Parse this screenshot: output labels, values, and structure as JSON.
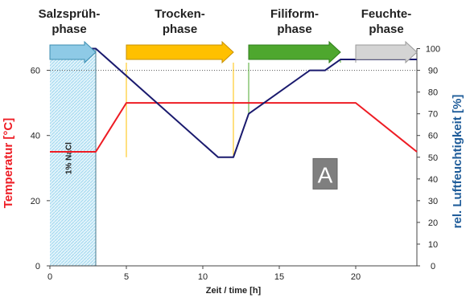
{
  "chart_data": {
    "type": "line",
    "xlabel": "Zeit / time [h]",
    "ylabel_left": "Temperatur [°C]",
    "ylabel_right": "rel. Luftfeuchtigkeit [%]",
    "xlim": [
      0,
      24
    ],
    "ylim_left": [
      0,
      70
    ],
    "ylim_right": [
      0,
      105
    ],
    "x_ticks": [
      0,
      5,
      10,
      15,
      20
    ],
    "y_ticks_left": [
      0,
      20,
      40,
      60
    ],
    "y_ticks_right": [
      0,
      10,
      20,
      30,
      40,
      50,
      60,
      70,
      80,
      90,
      100
    ],
    "grid": false,
    "reference_line_left": 60,
    "series": [
      {
        "name": "Temperatur [°C]",
        "axis": "left",
        "color": "#ee1c24",
        "x": [
          0,
          3,
          5,
          20,
          24
        ],
        "y": [
          35,
          35,
          50,
          50,
          35
        ]
      },
      {
        "name": "rel. Luftfeuchtigkeit [%]",
        "axis": "right",
        "color": "#1a1a6e",
        "x": [
          0,
          3,
          11,
          12,
          13,
          17,
          18,
          19,
          24
        ],
        "y": [
          100,
          100,
          50,
          50,
          70,
          90,
          90,
          95,
          95
        ]
      }
    ],
    "shaded_region": {
      "x": [
        0,
        3
      ],
      "label": "1% NaCl",
      "color": "#9fd7ef"
    },
    "phases": [
      {
        "line1": "Salzsprüh-",
        "line2": "phase",
        "start": 0,
        "end": 3,
        "color": "#8ecae6",
        "edge": "#3c8db0"
      },
      {
        "line1": "Trocken-",
        "line2": "phase",
        "start": 5,
        "end": 12,
        "color": "#ffc000",
        "edge": "#c79100"
      },
      {
        "line1": "Filiform-",
        "line2": "phase",
        "start": 13,
        "end": 19,
        "color": "#4ea72e",
        "edge": "#2e7d1a"
      },
      {
        "line1": "Feuchte-",
        "line2": "phase",
        "start": 20,
        "end": 24,
        "color": "#d4d4d4",
        "edge": "#9a9a9a"
      }
    ],
    "marker": {
      "label": "A",
      "x": 18,
      "y_left": 28,
      "color": "#7f7f7f"
    },
    "left_label_color": "#ee1c24",
    "right_label_color": "#1f5c99"
  }
}
